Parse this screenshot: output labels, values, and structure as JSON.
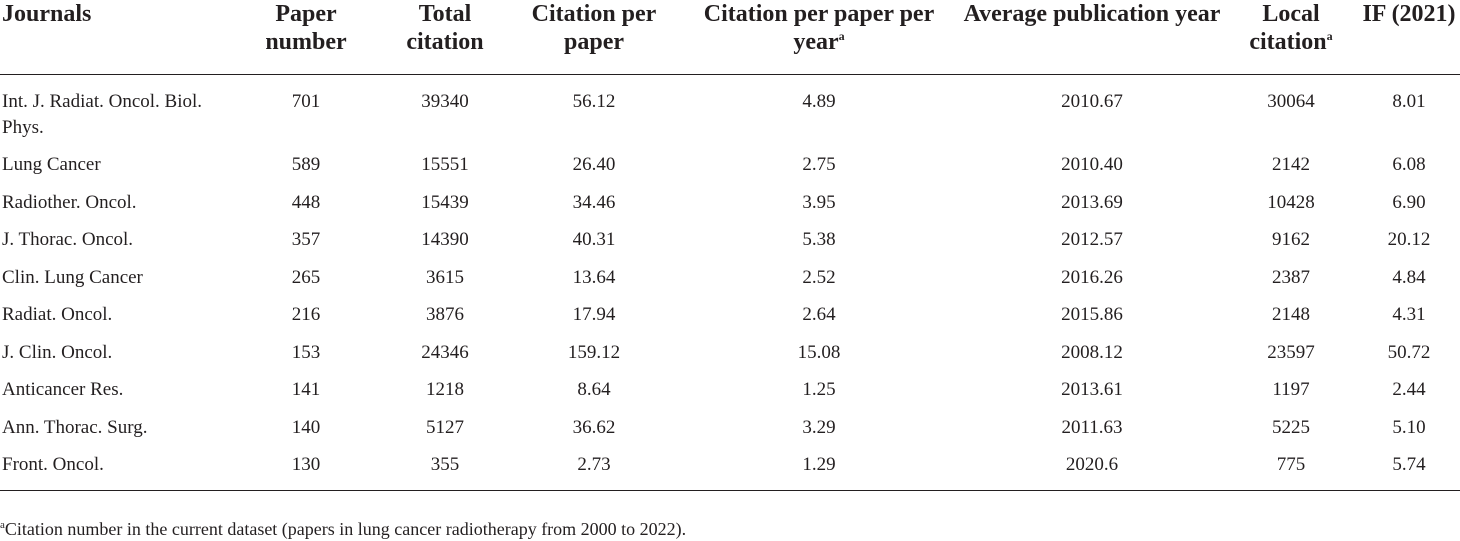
{
  "table": {
    "headers": [
      {
        "text": "Journals",
        "sup": ""
      },
      {
        "text": "Paper number",
        "sup": ""
      },
      {
        "text": "Total citation",
        "sup": ""
      },
      {
        "text": "Citation per paper",
        "sup": ""
      },
      {
        "text": "Citation per paper per year",
        "sup": "a"
      },
      {
        "text": "Average publication year",
        "sup": ""
      },
      {
        "text": "Local citation",
        "sup": "a"
      },
      {
        "text": "IF (2021)",
        "sup": ""
      }
    ],
    "rows": [
      [
        "Int. J. Radiat. Oncol. Biol. Phys.",
        "701",
        "39340",
        "56.12",
        "4.89",
        "2010.67",
        "30064",
        "8.01"
      ],
      [
        "Lung Cancer",
        "589",
        "15551",
        "26.40",
        "2.75",
        "2010.40",
        "2142",
        "6.08"
      ],
      [
        "Radiother. Oncol.",
        "448",
        "15439",
        "34.46",
        "3.95",
        "2013.69",
        "10428",
        "6.90"
      ],
      [
        "J. Thorac. Oncol.",
        "357",
        "14390",
        "40.31",
        "5.38",
        "2012.57",
        "9162",
        "20.12"
      ],
      [
        "Clin. Lung Cancer",
        "265",
        "3615",
        "13.64",
        "2.52",
        "2016.26",
        "2387",
        "4.84"
      ],
      [
        "Radiat. Oncol.",
        "216",
        "3876",
        "17.94",
        "2.64",
        "2015.86",
        "2148",
        "4.31"
      ],
      [
        "J. Clin. Oncol.",
        "153",
        "24346",
        "159.12",
        "15.08",
        "2008.12",
        "23597",
        "50.72"
      ],
      [
        "Anticancer Res.",
        "141",
        "1218",
        "8.64",
        "1.25",
        "2013.61",
        "1197",
        "2.44"
      ],
      [
        "Ann. Thorac. Surg.",
        "140",
        "5127",
        "36.62",
        "3.29",
        "2011.63",
        "5225",
        "5.10"
      ],
      [
        "Front. Oncol.",
        "130",
        "355",
        "2.73",
        "1.29",
        "2020.6",
        "775",
        "5.74"
      ]
    ]
  },
  "footnote": {
    "marker": "a",
    "text": "Citation number in the current dataset (papers in lung cancer radiotherapy from 2000 to 2022)."
  }
}
